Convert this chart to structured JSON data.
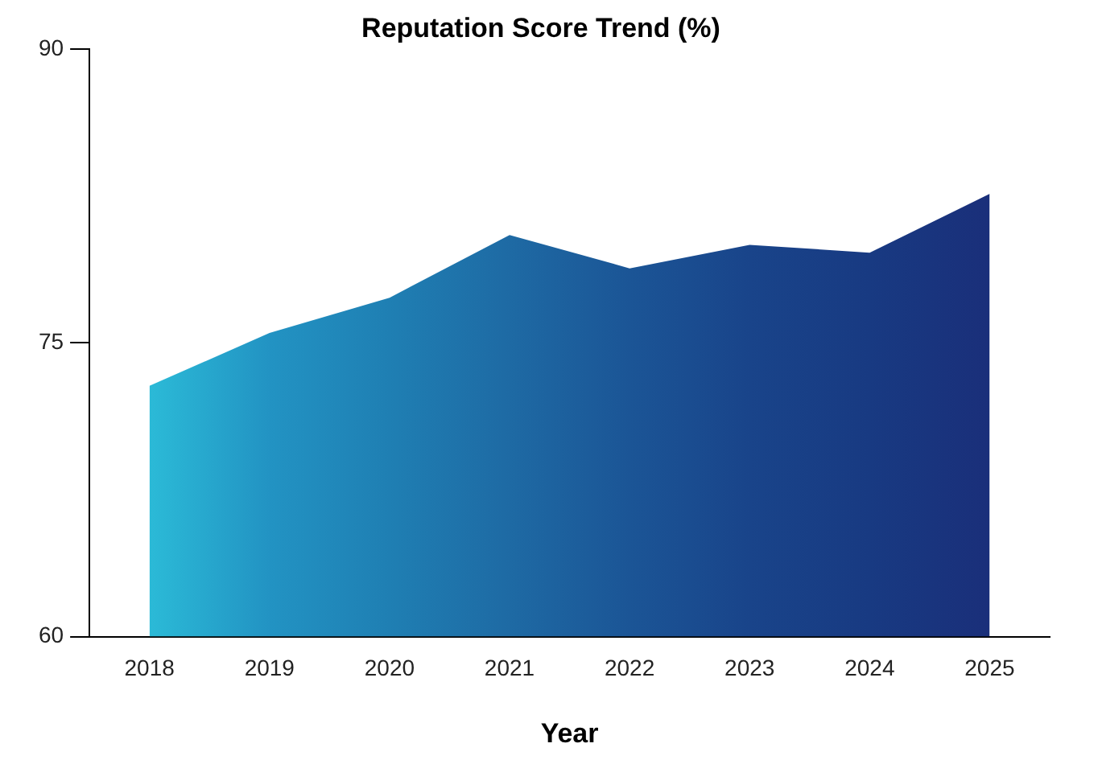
{
  "chart_data": {
    "type": "area",
    "title": "Reputation Score Trend (%)",
    "xlabel": "Year",
    "categories": [
      "2018",
      "2019",
      "2020",
      "2021",
      "2022",
      "2023",
      "2024",
      "2025"
    ],
    "values": [
      72.8,
      75.5,
      77.3,
      80.5,
      78.8,
      80.0,
      79.6,
      82.6
    ],
    "colors": [
      "#2bbad7",
      "#2293c3",
      "#1f7fb3",
      "#1e6aa4",
      "#1b5596",
      "#19448a",
      "#183a82",
      "#1a2f7a"
    ],
    "ylim": [
      60,
      90
    ],
    "yticks": [
      60,
      75,
      90
    ],
    "grid": false,
    "legend": false,
    "marker": "none"
  }
}
